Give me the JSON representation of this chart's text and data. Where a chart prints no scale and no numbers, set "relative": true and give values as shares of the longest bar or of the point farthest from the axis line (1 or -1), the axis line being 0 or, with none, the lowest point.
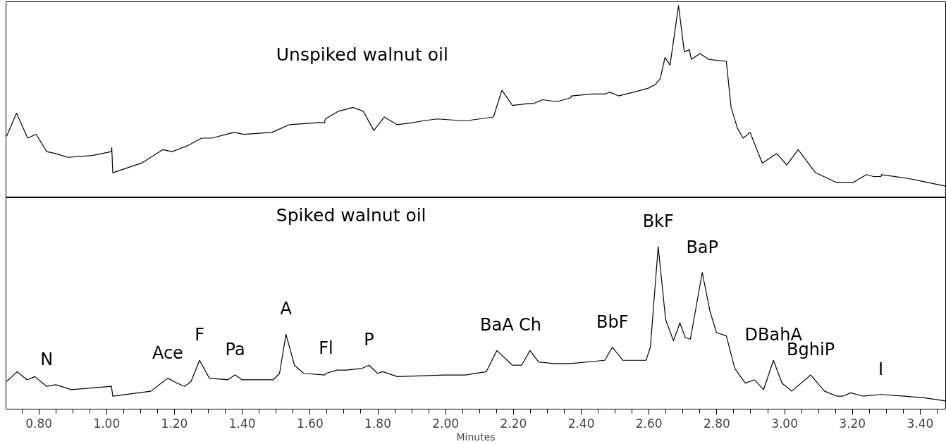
{
  "chart_data": [
    {
      "type": "line",
      "title": "Unspiked walnut oil",
      "relative": true,
      "grid": false,
      "tick_labels": false,
      "xlim": [
        0.703,
        3.475
      ],
      "series": [
        {
          "color": "#000000",
          "x": [
            0.705,
            0.734,
            0.767,
            0.792,
            0.823,
            0.85,
            0.886,
            0.958,
            1.014,
            1.015,
            1.018,
            1.103,
            1.166,
            1.193,
            1.238,
            1.28,
            1.311,
            1.352,
            1.377,
            1.404,
            1.487,
            1.539,
            1.622,
            1.643,
            1.645,
            1.684,
            1.726,
            1.757,
            1.788,
            1.819,
            1.857,
            1.902,
            1.933,
            1.975,
            2.058,
            2.141,
            2.166,
            2.197,
            2.245,
            2.259,
            2.286,
            2.328,
            2.369,
            2.371,
            2.432,
            2.473,
            2.483,
            2.51,
            2.556,
            2.598,
            2.619,
            2.633,
            2.647,
            2.662,
            2.687,
            2.704,
            2.719,
            2.725,
            2.75,
            2.776,
            2.828,
            2.842,
            2.861,
            2.878,
            2.898,
            2.934,
            2.977,
            3.006,
            3.04,
            3.091,
            3.152,
            3.203,
            3.241,
            3.262,
            3.284,
            3.286,
            3.365,
            3.475
          ],
          "values": [
            0.32,
            0.44,
            0.31,
            0.33,
            0.24,
            0.23,
            0.21,
            0.22,
            0.24,
            0.26,
            0.13,
            0.18,
            0.25,
            0.24,
            0.27,
            0.31,
            0.31,
            0.33,
            0.34,
            0.33,
            0.34,
            0.38,
            0.39,
            0.39,
            0.41,
            0.45,
            0.47,
            0.45,
            0.35,
            0.42,
            0.38,
            0.39,
            0.4,
            0.41,
            0.4,
            0.42,
            0.56,
            0.48,
            0.49,
            0.49,
            0.51,
            0.5,
            0.52,
            0.53,
            0.54,
            0.54,
            0.55,
            0.53,
            0.55,
            0.57,
            0.59,
            0.62,
            0.73,
            0.69,
            1.0,
            0.76,
            0.77,
            0.72,
            0.75,
            0.72,
            0.71,
            0.47,
            0.36,
            0.31,
            0.34,
            0.18,
            0.23,
            0.17,
            0.25,
            0.13,
            0.08,
            0.08,
            0.12,
            0.11,
            0.11,
            0.12,
            0.1,
            0.06
          ]
        }
      ]
    },
    {
      "type": "line",
      "title": "Spiked walnut oil",
      "relative": true,
      "grid": false,
      "xlabel": "Minutes",
      "xlim": [
        0.703,
        3.475
      ],
      "xticks": [
        {
          "value": 0.75,
          "label": null
        },
        {
          "value": 0.8,
          "label": "0.80"
        },
        {
          "value": 0.85,
          "label": null
        },
        {
          "value": 0.9,
          "label": null
        },
        {
          "value": 0.95,
          "label": null
        },
        {
          "value": 1.0,
          "label": "1.00"
        },
        {
          "value": 1.05,
          "label": null
        },
        {
          "value": 1.1,
          "label": null
        },
        {
          "value": 1.15,
          "label": null
        },
        {
          "value": 1.2,
          "label": "1.20"
        },
        {
          "value": 1.25,
          "label": null
        },
        {
          "value": 1.3,
          "label": null
        },
        {
          "value": 1.35,
          "label": null
        },
        {
          "value": 1.4,
          "label": "1.40"
        },
        {
          "value": 1.45,
          "label": null
        },
        {
          "value": 1.5,
          "label": null
        },
        {
          "value": 1.55,
          "label": null
        },
        {
          "value": 1.6,
          "label": "1.60"
        },
        {
          "value": 1.65,
          "label": null
        },
        {
          "value": 1.7,
          "label": null
        },
        {
          "value": 1.75,
          "label": null
        },
        {
          "value": 1.8,
          "label": "1.80"
        },
        {
          "value": 1.85,
          "label": null
        },
        {
          "value": 1.9,
          "label": null
        },
        {
          "value": 1.95,
          "label": null
        },
        {
          "value": 2.0,
          "label": "2.00"
        },
        {
          "value": 2.05,
          "label": null
        },
        {
          "value": 2.1,
          "label": null
        },
        {
          "value": 2.15,
          "label": null
        },
        {
          "value": 2.2,
          "label": "2.20"
        },
        {
          "value": 2.25,
          "label": null
        },
        {
          "value": 2.3,
          "label": null
        },
        {
          "value": 2.35,
          "label": null
        },
        {
          "value": 2.4,
          "label": "2.40"
        },
        {
          "value": 2.45,
          "label": null
        },
        {
          "value": 2.5,
          "label": null
        },
        {
          "value": 2.55,
          "label": null
        },
        {
          "value": 2.6,
          "label": "2.60"
        },
        {
          "value": 2.65,
          "label": null
        },
        {
          "value": 2.7,
          "label": null
        },
        {
          "value": 2.75,
          "label": null
        },
        {
          "value": 2.8,
          "label": "2.80"
        },
        {
          "value": 2.85,
          "label": null
        },
        {
          "value": 2.9,
          "label": null
        },
        {
          "value": 2.95,
          "label": null
        },
        {
          "value": 3.0,
          "label": "3.00"
        },
        {
          "value": 3.05,
          "label": null
        },
        {
          "value": 3.1,
          "label": null
        },
        {
          "value": 3.15,
          "label": null
        },
        {
          "value": 3.2,
          "label": "3.20"
        },
        {
          "value": 3.25,
          "label": null
        },
        {
          "value": 3.3,
          "label": null
        },
        {
          "value": 3.35,
          "label": null
        },
        {
          "value": 3.4,
          "label": "3.40"
        },
        {
          "value": 3.45,
          "label": null
        }
      ],
      "annotations": [
        {
          "text": "N",
          "x": 0.823,
          "y": 0.15
        },
        {
          "text": "Ace",
          "x": 1.18,
          "y": 0.19
        },
        {
          "text": "F",
          "x": 1.274,
          "y": 0.3
        },
        {
          "text": "Pa",
          "x": 1.379,
          "y": 0.21
        },
        {
          "text": "A",
          "x": 1.529,
          "y": 0.46
        },
        {
          "text": "Fl",
          "x": 1.647,
          "y": 0.22
        },
        {
          "text": "P",
          "x": 1.774,
          "y": 0.27
        },
        {
          "text": "BaA",
          "x": 2.151,
          "y": 0.36
        },
        {
          "text": "Ch",
          "x": 2.249,
          "y": 0.36
        },
        {
          "text": "BbF",
          "x": 2.492,
          "y": 0.38
        },
        {
          "text": "BkF",
          "x": 2.627,
          "y": 1.0
        },
        {
          "text": "BaP",
          "x": 2.757,
          "y": 0.84
        },
        {
          "text": "DBahA",
          "x": 2.967,
          "y": 0.3
        },
        {
          "text": "BghiP",
          "x": 3.077,
          "y": 0.21
        },
        {
          "text": "I",
          "x": 3.284,
          "y": 0.09
        }
      ],
      "series": [
        {
          "color": "#000000",
          "x": [
            0.705,
            0.736,
            0.765,
            0.788,
            0.823,
            0.85,
            0.896,
            1.014,
            1.018,
            1.13,
            1.18,
            1.207,
            1.23,
            1.249,
            1.274,
            1.303,
            1.357,
            1.379,
            1.4,
            1.491,
            1.51,
            1.529,
            1.554,
            1.581,
            1.643,
            1.647,
            1.68,
            1.707,
            1.753,
            1.774,
            1.799,
            1.815,
            1.857,
            1.996,
            2.058,
            2.12,
            2.151,
            2.197,
            2.224,
            2.249,
            2.274,
            2.319,
            2.369,
            2.469,
            2.492,
            2.523,
            2.591,
            2.604,
            2.627,
            2.649,
            2.672,
            2.691,
            2.707,
            2.722,
            2.757,
            2.78,
            2.799,
            2.828,
            2.853,
            2.884,
            2.911,
            2.938,
            2.967,
            2.992,
            3.021,
            3.077,
            3.118,
            3.154,
            3.172,
            3.195,
            3.23,
            3.284,
            3.289,
            3.411,
            3.475
          ],
          "values": [
            0.17,
            0.23,
            0.18,
            0.2,
            0.14,
            0.15,
            0.12,
            0.14,
            0.08,
            0.11,
            0.19,
            0.16,
            0.14,
            0.17,
            0.3,
            0.19,
            0.18,
            0.21,
            0.18,
            0.18,
            0.22,
            0.46,
            0.27,
            0.22,
            0.21,
            0.22,
            0.24,
            0.24,
            0.25,
            0.27,
            0.22,
            0.23,
            0.2,
            0.21,
            0.21,
            0.23,
            0.36,
            0.27,
            0.27,
            0.36,
            0.29,
            0.28,
            0.28,
            0.3,
            0.38,
            0.3,
            0.3,
            0.38,
            1.0,
            0.55,
            0.42,
            0.53,
            0.44,
            0.43,
            0.84,
            0.6,
            0.47,
            0.45,
            0.25,
            0.16,
            0.18,
            0.12,
            0.3,
            0.16,
            0.11,
            0.21,
            0.11,
            0.08,
            0.08,
            0.1,
            0.08,
            0.09,
            0.09,
            0.07,
            0.05
          ]
        }
      ]
    }
  ]
}
